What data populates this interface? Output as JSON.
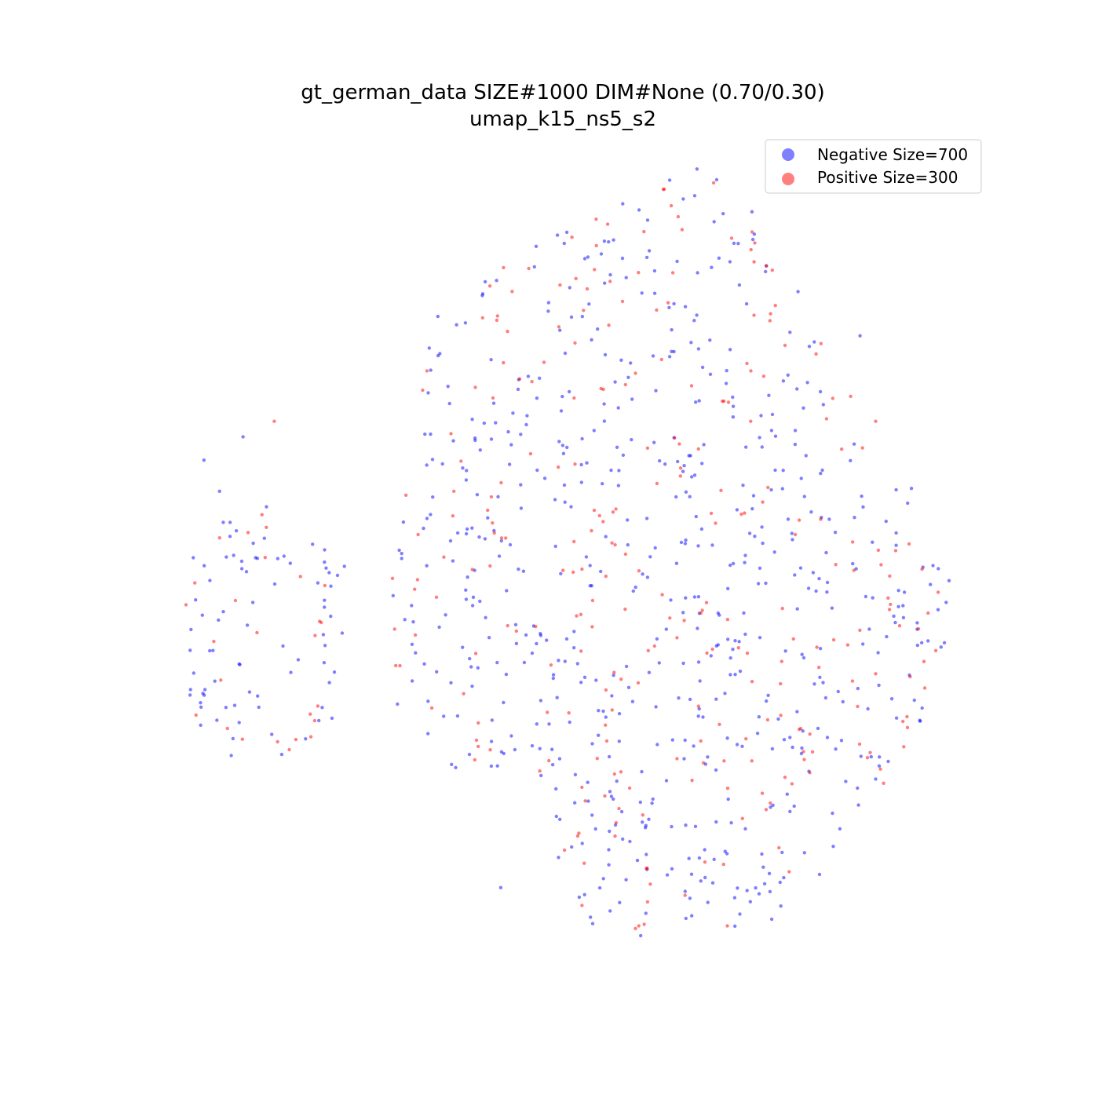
{
  "chart_data": {
    "type": "scatter",
    "title": "gt_german_data SIZE#1000 DIM#None (0.70/0.30)",
    "subtitle": "umap_k15_ns5_s2",
    "axes_visible": false,
    "grid": false,
    "legend_position": "top-right",
    "xlim": [
      0,
      1000
    ],
    "ylim": [
      0,
      1000
    ],
    "series": [
      {
        "name": "Negative Size=700",
        "color": "#0000ff",
        "opacity": 0.5,
        "generate": {
          "count": 700,
          "seed": 11
        }
      },
      {
        "name": "Positive Size=300",
        "color": "#ff0000",
        "opacity": 0.5,
        "generate": {
          "count": 300,
          "seed": 29
        }
      }
    ],
    "negative_sample_points": [
      [
        40,
        380
      ],
      [
        60,
        420
      ],
      [
        120,
        440
      ],
      [
        90,
        350
      ],
      [
        420,
        930
      ],
      [
        560,
        960
      ],
      [
        640,
        740
      ],
      [
        620,
        610
      ],
      [
        760,
        690
      ],
      [
        890,
        700
      ],
      [
        970,
        540
      ],
      [
        880,
        220
      ],
      [
        760,
        130
      ],
      [
        680,
        360
      ],
      [
        510,
        440
      ],
      [
        330,
        450
      ]
    ],
    "positive_sample_points": [
      [
        60,
        480
      ],
      [
        130,
        330
      ],
      [
        320,
        290
      ],
      [
        360,
        420
      ],
      [
        440,
        600
      ],
      [
        470,
        780
      ],
      [
        520,
        860
      ],
      [
        700,
        720
      ],
      [
        620,
        410
      ],
      [
        740,
        330
      ],
      [
        830,
        230
      ],
      [
        900,
        330
      ],
      [
        980,
        550
      ],
      [
        760,
        130
      ],
      [
        560,
        150
      ],
      [
        410,
        300
      ]
    ]
  }
}
